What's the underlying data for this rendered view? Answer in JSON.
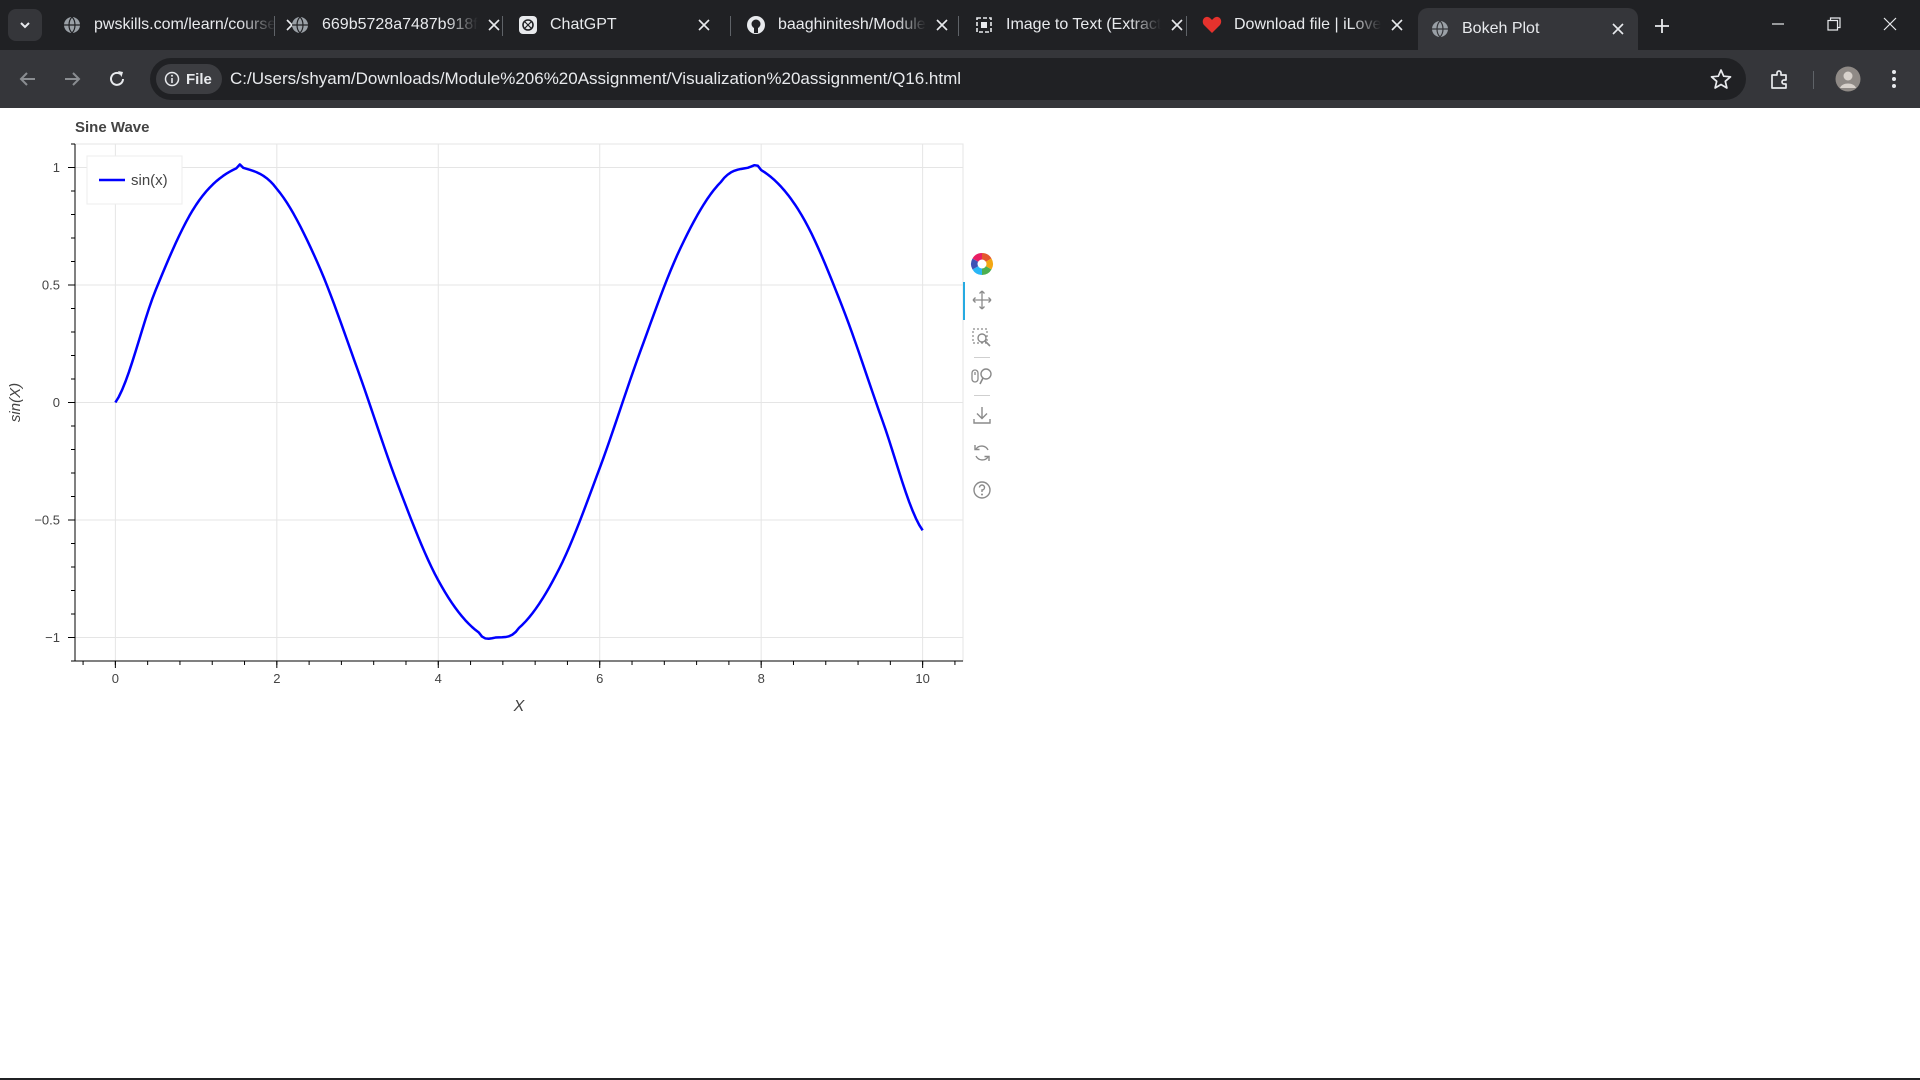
{
  "browser": {
    "tabs": [
      {
        "title": "pwskills.com/learn/course",
        "icon": "globe-icon",
        "active": false
      },
      {
        "title": "669b5728a7487b918f",
        "icon": "globe-icon",
        "active": false
      },
      {
        "title": "ChatGPT",
        "icon": "chatgpt-icon",
        "active": false
      },
      {
        "title": "baaghinitesh/Module",
        "icon": "github-icon",
        "active": false
      },
      {
        "title": "Image to Text (Extract",
        "icon": "image-to-text-icon",
        "active": false
      },
      {
        "title": "Download file | iLove",
        "icon": "heart-icon",
        "active": false
      },
      {
        "title": "Bokeh Plot",
        "icon": "globe-icon",
        "active": true
      }
    ],
    "chip_label": "File",
    "url": "C:/Users/shyam/Downloads/Module%206%20Assignment/Visualization%20assignment/Q16.html"
  },
  "chart_data": {
    "type": "line",
    "title": "Sine Wave",
    "xlabel": "X",
    "ylabel": "sin(X)",
    "xlim": [
      -0.5,
      10.5
    ],
    "ylim": [
      -1.1,
      1.1
    ],
    "xticks": [
      0,
      2,
      4,
      6,
      8,
      10
    ],
    "xtick_labels": [
      "0",
      "2",
      "4",
      "6",
      "8",
      "10"
    ],
    "yticks": [
      -1,
      -0.5,
      0,
      0.5,
      1
    ],
    "ytick_labels": [
      "−1",
      "−0.5",
      "0",
      "0.5",
      "1"
    ],
    "grid": true,
    "legend_position": "top-left",
    "series": [
      {
        "name": "sin(x)",
        "color": "#0000ff",
        "x": [
          0,
          0.5,
          1,
          1.5,
          1.5708,
          2,
          2.5,
          3,
          3.5,
          4,
          4.5,
          4.7124,
          5,
          5.5,
          6,
          6.5,
          7,
          7.5,
          7.854,
          8,
          8.5,
          9,
          9.5,
          10
        ],
        "y": [
          0,
          0.479,
          0.841,
          0.997,
          1,
          0.909,
          0.598,
          0.141,
          -0.351,
          -0.757,
          -0.978,
          -1,
          -0.959,
          -0.706,
          -0.279,
          0.215,
          0.657,
          0.938,
          1,
          0.989,
          0.798,
          0.412,
          -0.075,
          -0.544
        ]
      }
    ]
  },
  "bokeh_toolbar": {
    "tools": [
      "bokeh-logo-icon",
      "pan-icon",
      "box-zoom-icon",
      "wheel-zoom-icon",
      "save-icon",
      "reset-icon",
      "help-icon"
    ]
  }
}
